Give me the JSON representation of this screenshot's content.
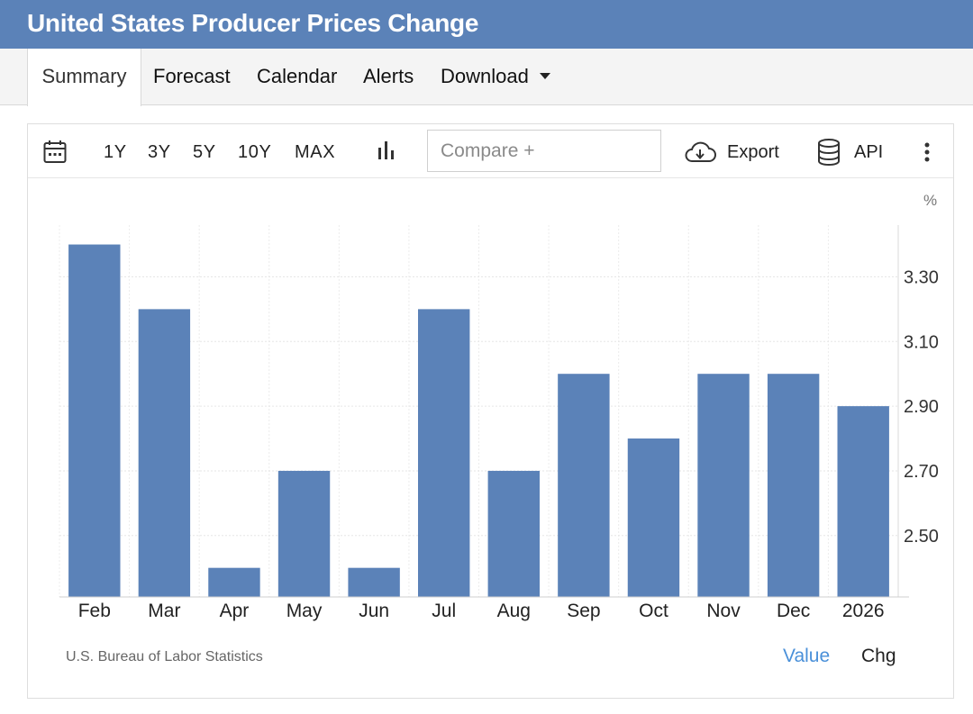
{
  "page": {
    "title": "United States Producer Prices Change"
  },
  "tabs": [
    {
      "label": "Summary",
      "active": true
    },
    {
      "label": "Forecast"
    },
    {
      "label": "Calendar"
    },
    {
      "label": "Alerts"
    },
    {
      "label": "Download"
    }
  ],
  "toolbar": {
    "ranges": [
      "1Y",
      "3Y",
      "5Y",
      "10Y",
      "MAX"
    ],
    "compare_placeholder": "Compare +",
    "export_label": "Export",
    "api_label": "API"
  },
  "chart_data": {
    "type": "bar",
    "categories": [
      "Feb",
      "Mar",
      "Apr",
      "May",
      "Jun",
      "Jul",
      "Aug",
      "Sep",
      "Oct",
      "Nov",
      "Dec",
      "2026"
    ],
    "values": [
      3.4,
      3.2,
      2.4,
      2.7,
      2.4,
      3.2,
      2.7,
      3.0,
      2.8,
      3.0,
      3.0,
      2.9
    ],
    "unit": "%",
    "ylim": [
      2.31,
      3.46
    ],
    "yticks": [
      2.5,
      2.7,
      2.9,
      3.1,
      3.3
    ],
    "ytick_labels": [
      "2.50",
      "2.70",
      "2.90",
      "3.10",
      "3.30"
    ],
    "y_axis_side": "right",
    "grid": true,
    "bar_color": "#5b82b8"
  },
  "footer": {
    "source": "U.S. Bureau of Labor Statistics",
    "value_label": "Value",
    "chg_label": "Chg"
  },
  "colors": {
    "accent": "#5b82b8",
    "link": "#4a90d9"
  }
}
